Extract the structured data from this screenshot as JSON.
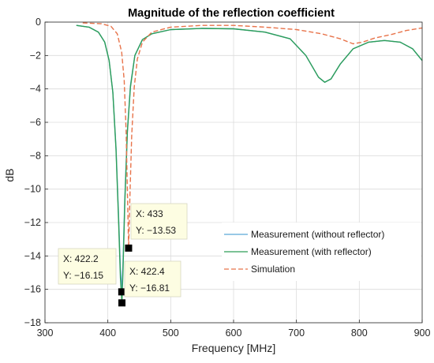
{
  "chart_data": {
    "type": "line",
    "title": "Magnitude of the reflection coefficient",
    "xlabel": "Frequency [MHz]",
    "ylabel": "dB",
    "xlim": [
      300,
      900
    ],
    "ylim": [
      -18,
      0
    ],
    "x_ticks": [
      300,
      400,
      500,
      600,
      700,
      800,
      900
    ],
    "y_ticks": [
      0,
      -2,
      -4,
      -6,
      -8,
      -10,
      -12,
      -14,
      -16,
      -18
    ],
    "grid": true,
    "legend_position": "lower-right",
    "series": [
      {
        "name": "Measurement (without reflector)",
        "color": "#5aa9d6",
        "dash": "solid",
        "points": [
          [
            350,
            -0.2
          ],
          [
            370,
            -0.3
          ],
          [
            385,
            -0.6
          ],
          [
            395,
            -1.2
          ],
          [
            402,
            -2.3
          ],
          [
            408,
            -4.2
          ],
          [
            413,
            -7.5
          ],
          [
            417,
            -11.5
          ],
          [
            420,
            -14.8
          ],
          [
            422.2,
            -16.15
          ],
          [
            424,
            -14.5
          ],
          [
            427,
            -10.5
          ],
          [
            431,
            -6.5
          ],
          [
            436,
            -3.8
          ],
          [
            443,
            -2.0
          ],
          [
            455,
            -1.05
          ],
          [
            470,
            -0.7
          ],
          [
            500,
            -0.45
          ],
          [
            550,
            -0.38
          ],
          [
            600,
            -0.4
          ],
          [
            650,
            -0.6
          ],
          [
            690,
            -1.0
          ],
          [
            715,
            -2.0
          ],
          [
            735,
            -3.3
          ],
          [
            745,
            -3.6
          ],
          [
            755,
            -3.4
          ],
          [
            770,
            -2.5
          ],
          [
            790,
            -1.6
          ],
          [
            815,
            -1.2
          ],
          [
            840,
            -1.1
          ],
          [
            865,
            -1.2
          ],
          [
            885,
            -1.6
          ],
          [
            900,
            -2.3
          ]
        ]
      },
      {
        "name": "Measurement (with reflector)",
        "color": "#2e9e58",
        "dash": "solid",
        "points": [
          [
            350,
            -0.2
          ],
          [
            370,
            -0.3
          ],
          [
            385,
            -0.6
          ],
          [
            395,
            -1.2
          ],
          [
            402,
            -2.3
          ],
          [
            408,
            -4.2
          ],
          [
            413,
            -7.6
          ],
          [
            417,
            -11.8
          ],
          [
            420,
            -15.3
          ],
          [
            422.4,
            -16.81
          ],
          [
            424,
            -15.0
          ],
          [
            427,
            -10.8
          ],
          [
            431,
            -6.6
          ],
          [
            436,
            -3.9
          ],
          [
            443,
            -2.0
          ],
          [
            455,
            -1.05
          ],
          [
            470,
            -0.7
          ],
          [
            500,
            -0.45
          ],
          [
            550,
            -0.38
          ],
          [
            600,
            -0.4
          ],
          [
            650,
            -0.6
          ],
          [
            690,
            -1.0
          ],
          [
            715,
            -2.0
          ],
          [
            735,
            -3.3
          ],
          [
            745,
            -3.6
          ],
          [
            755,
            -3.4
          ],
          [
            770,
            -2.5
          ],
          [
            790,
            -1.6
          ],
          [
            815,
            -1.2
          ],
          [
            840,
            -1.1
          ],
          [
            865,
            -1.2
          ],
          [
            885,
            -1.6
          ],
          [
            900,
            -2.3
          ]
        ]
      },
      {
        "name": "Simulation",
        "color": "#e8734a",
        "dash": "dashed",
        "points": [
          [
            360,
            -0.05
          ],
          [
            390,
            -0.1
          ],
          [
            405,
            -0.25
          ],
          [
            415,
            -0.7
          ],
          [
            422,
            -1.8
          ],
          [
            426,
            -3.5
          ],
          [
            429,
            -6.5
          ],
          [
            431,
            -10.0
          ],
          [
            433,
            -13.53
          ],
          [
            435,
            -10.5
          ],
          [
            438,
            -6.8
          ],
          [
            442,
            -3.9
          ],
          [
            447,
            -2.2
          ],
          [
            455,
            -1.2
          ],
          [
            470,
            -0.6
          ],
          [
            500,
            -0.3
          ],
          [
            550,
            -0.2
          ],
          [
            600,
            -0.2
          ],
          [
            650,
            -0.3
          ],
          [
            700,
            -0.45
          ],
          [
            740,
            -0.7
          ],
          [
            770,
            -1.0
          ],
          [
            790,
            -1.3
          ],
          [
            805,
            -1.2
          ],
          [
            825,
            -0.95
          ],
          [
            850,
            -0.75
          ],
          [
            875,
            -0.5
          ],
          [
            900,
            -0.35
          ]
        ]
      }
    ],
    "markers": [
      {
        "x": 433,
        "y": -13.53
      },
      {
        "x": 422.2,
        "y": -16.15
      },
      {
        "x": 422.4,
        "y": -16.81
      }
    ],
    "datatips": [
      {
        "x_label": "X: 433",
        "y_label": "Y: −13.53"
      },
      {
        "x_label": "X: 422.2",
        "y_label": "Y: −16.15"
      },
      {
        "x_label": "X: 422.4",
        "y_label": "Y: −16.81"
      }
    ]
  }
}
